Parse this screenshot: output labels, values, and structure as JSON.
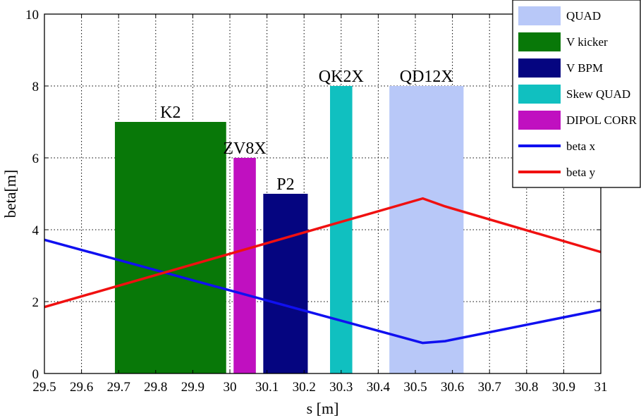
{
  "chart_data": {
    "type": "bar",
    "xlabel": "s [m]",
    "ylabel": "beta[m]",
    "xlim": [
      29.5,
      31
    ],
    "ylim": [
      0,
      10
    ],
    "grid": true,
    "legend_position": "top-right",
    "x_ticks": [
      "29.5",
      "29.6",
      "29.7",
      "29.8",
      "29.9",
      "30",
      "30.1",
      "30.2",
      "30.3",
      "30.4",
      "30.5",
      "30.6",
      "30.7",
      "30.8",
      "30.9",
      "31"
    ],
    "y_ticks": [
      "0",
      "2",
      "4",
      "6",
      "8",
      "10"
    ],
    "elements": [
      {
        "label": "K2",
        "type": "V kicker",
        "s_start": 29.69,
        "s_end": 29.99,
        "height": 7
      },
      {
        "label": "ZV8X",
        "type": "DIPOL CORR",
        "s_start": 30.01,
        "s_end": 30.07,
        "height": 6
      },
      {
        "label": "P2",
        "type": "V BPM",
        "s_start": 30.09,
        "s_end": 30.21,
        "height": 5
      },
      {
        "label": "QK2X",
        "type": "Skew QUAD",
        "s_start": 30.27,
        "s_end": 30.33,
        "height": 8
      },
      {
        "label": "QD12X",
        "type": "QUAD",
        "s_start": 30.43,
        "s_end": 30.63,
        "height": 8
      }
    ],
    "series": [
      {
        "name": "beta x",
        "x": [
          29.5,
          30.52,
          30.58,
          31.0
        ],
        "y": [
          3.72,
          0.85,
          0.9,
          1.77
        ]
      },
      {
        "name": "beta y",
        "x": [
          29.5,
          30.52,
          30.58,
          31.0
        ],
        "y": [
          1.85,
          4.87,
          4.65,
          3.38
        ]
      }
    ],
    "legend": [
      {
        "name": "QUAD",
        "kind": "patch",
        "color": "#b8c8f8"
      },
      {
        "name": "V kicker",
        "kind": "patch",
        "color": "#087808"
      },
      {
        "name": "V BPM",
        "kind": "patch",
        "color": "#050580"
      },
      {
        "name": "Skew QUAD",
        "kind": "patch",
        "color": "#10c0c0"
      },
      {
        "name": "DIPOL CORR",
        "kind": "patch",
        "color": "#c010c0"
      },
      {
        "name": "beta x",
        "kind": "line",
        "color": "#1010f0"
      },
      {
        "name": "beta y",
        "kind": "line",
        "color": "#f01010"
      }
    ]
  }
}
